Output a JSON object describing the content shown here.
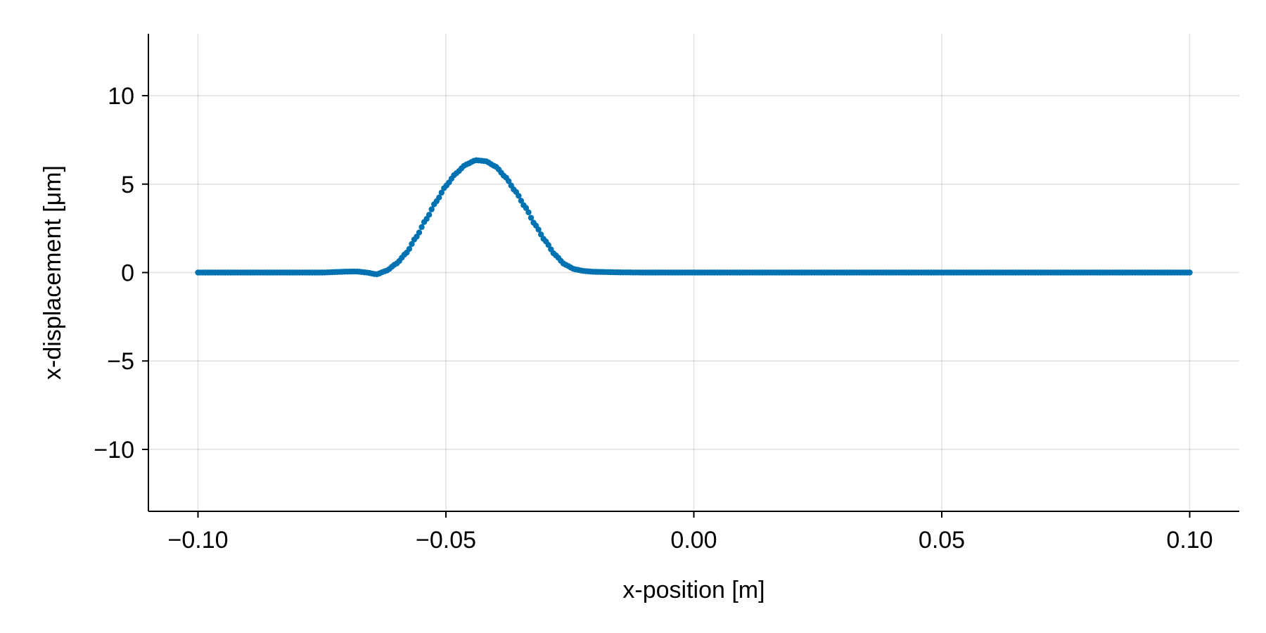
{
  "chart_data": {
    "type": "scatter",
    "title": "",
    "xlabel": "x-position [m]",
    "ylabel": "x-displacement [μm]",
    "xlim": [
      -0.11,
      0.11
    ],
    "ylim": [
      -13.5,
      13.5
    ],
    "x_ticks": [
      -0.1,
      -0.05,
      0.0,
      0.05,
      0.1
    ],
    "x_tick_labels": [
      "−0.10",
      "−0.05",
      "0.00",
      "0.05",
      "0.10"
    ],
    "y_ticks": [
      -10,
      -5,
      0,
      5,
      10
    ],
    "y_tick_labels": [
      "−10",
      "−5",
      "0",
      "5",
      "10"
    ],
    "grid": true,
    "legend": "none",
    "series": [
      {
        "color": "#0072B2",
        "x_range": [
          -0.1,
          0.1
        ],
        "point_count": 400,
        "points": [
          [
            -0.1,
            0.0
          ],
          [
            -0.09,
            0.0
          ],
          [
            -0.08,
            0.0
          ],
          [
            -0.075,
            0.0
          ],
          [
            -0.07,
            0.05
          ],
          [
            -0.068,
            0.06
          ],
          [
            -0.066,
            0.0
          ],
          [
            -0.064,
            -0.1
          ],
          [
            -0.062,
            0.1
          ],
          [
            -0.06,
            0.5
          ],
          [
            -0.058,
            1.1
          ],
          [
            -0.056,
            2.0
          ],
          [
            -0.054,
            3.0
          ],
          [
            -0.052,
            4.0
          ],
          [
            -0.05,
            4.9
          ],
          [
            -0.048,
            5.6
          ],
          [
            -0.046,
            6.1
          ],
          [
            -0.044,
            6.35
          ],
          [
            -0.042,
            6.3
          ],
          [
            -0.04,
            6.0
          ],
          [
            -0.038,
            5.4
          ],
          [
            -0.036,
            4.6
          ],
          [
            -0.034,
            3.7
          ],
          [
            -0.032,
            2.7
          ],
          [
            -0.03,
            1.8
          ],
          [
            -0.028,
            1.0
          ],
          [
            -0.026,
            0.45
          ],
          [
            -0.024,
            0.18
          ],
          [
            -0.022,
            0.08
          ],
          [
            -0.02,
            0.04
          ],
          [
            -0.015,
            0.01
          ],
          [
            -0.01,
            0.0
          ],
          [
            0.0,
            0.0
          ],
          [
            0.05,
            0.0
          ],
          [
            0.1,
            0.0
          ]
        ]
      }
    ]
  }
}
